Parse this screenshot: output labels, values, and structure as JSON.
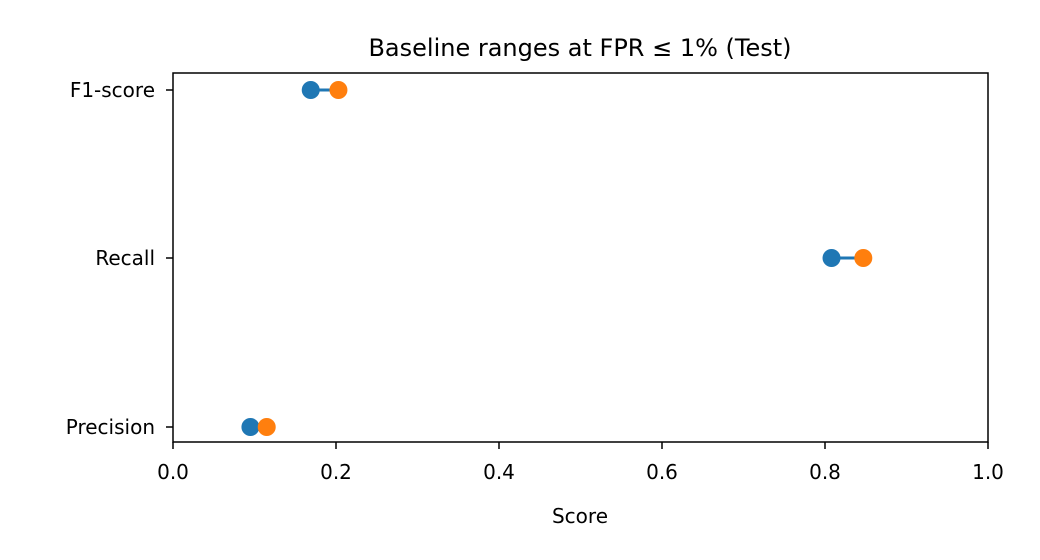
{
  "chart_data": {
    "type": "dumbbell",
    "title": "Baseline ranges at FPR ≤ 1% (Test)",
    "xlabel": "Score",
    "ylabel": "",
    "xlim": [
      0.0,
      1.0
    ],
    "xticks": [
      "0.0",
      "0.2",
      "0.4",
      "0.6",
      "0.8",
      "1.0"
    ],
    "categories": [
      "Precision",
      "Recall",
      "F1-score"
    ],
    "series": [
      {
        "values": [
          0.095,
          0.808,
          0.169
        ]
      },
      {
        "values": [
          0.115,
          0.847,
          0.203
        ]
      }
    ],
    "colors": {
      "low": "#1f77b4",
      "high": "#ff7f0e",
      "connector": "#1f77b4",
      "axes": "#000000"
    },
    "grid": false,
    "legend": "none"
  }
}
